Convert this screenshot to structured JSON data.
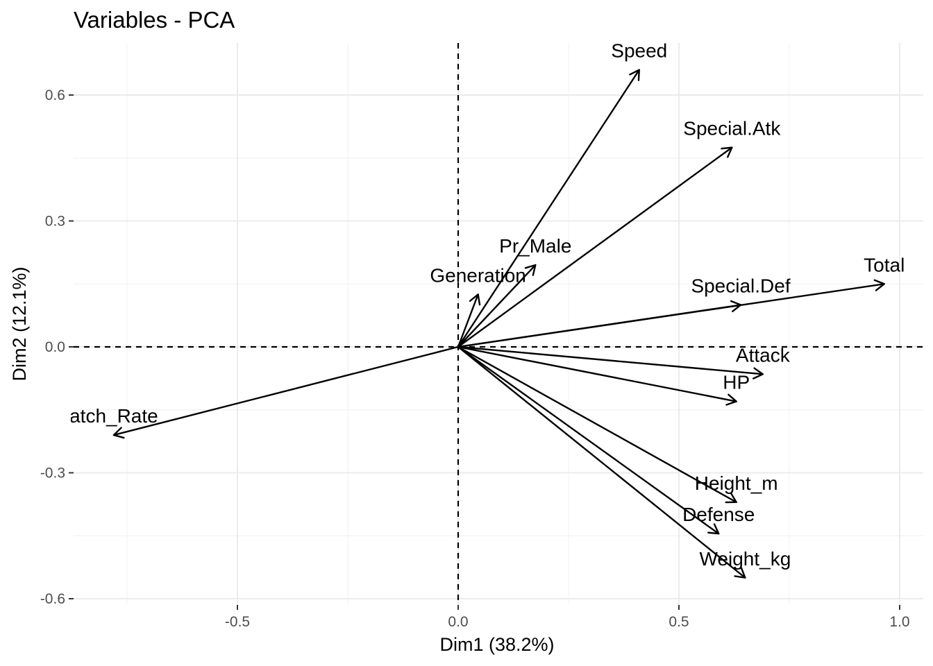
{
  "chart_data": {
    "type": "pca-variables",
    "title": "Variables - PCA",
    "xlabel": "Dim1 (38.2%)",
    "ylabel": "Dim2 (12.1%)",
    "xlim": [
      -0.87,
      1.05
    ],
    "ylim": [
      -0.62,
      0.72
    ],
    "xticks": [
      -0.5,
      0.0,
      0.5,
      1.0
    ],
    "xtick_labels": [
      "-0.5",
      "0.0",
      "0.5",
      "1.0"
    ],
    "yticks": [
      -0.6,
      -0.3,
      0.0,
      0.3,
      0.6
    ],
    "ytick_labels": [
      "-0.6",
      "-0.3",
      "0.0",
      "0.3",
      "0.6"
    ],
    "grid": true,
    "reference_lines": {
      "x": 0.0,
      "y": 0.0,
      "style": "dashed"
    },
    "variables": [
      {
        "name": "Speed",
        "label": "Speed",
        "x": 0.41,
        "y": 0.66
      },
      {
        "name": "Special.Atk",
        "label": "Special.Atk",
        "x": 0.62,
        "y": 0.475
      },
      {
        "name": "Pr_Male",
        "label": "Pr_Male",
        "x": 0.175,
        "y": 0.195
      },
      {
        "name": "Generation",
        "label": "Generation",
        "x": 0.045,
        "y": 0.125
      },
      {
        "name": "Total",
        "label": "Total",
        "x": 0.965,
        "y": 0.15
      },
      {
        "name": "Special.Def",
        "label": "Special.Def",
        "x": 0.64,
        "y": 0.1
      },
      {
        "name": "Attack",
        "label": "Attack",
        "x": 0.69,
        "y": -0.065
      },
      {
        "name": "HP",
        "label": "HP",
        "x": 0.63,
        "y": -0.13
      },
      {
        "name": "Catch_Rate",
        "label": "atch_Rate",
        "x": -0.78,
        "y": -0.21
      },
      {
        "name": "Height_m",
        "label": "Height_m",
        "x": 0.63,
        "y": -0.37
      },
      {
        "name": "Defense",
        "label": "Defense",
        "x": 0.59,
        "y": -0.445
      },
      {
        "name": "Weight_kg",
        "label": "Weight_kg",
        "x": 0.65,
        "y": -0.55
      }
    ]
  }
}
